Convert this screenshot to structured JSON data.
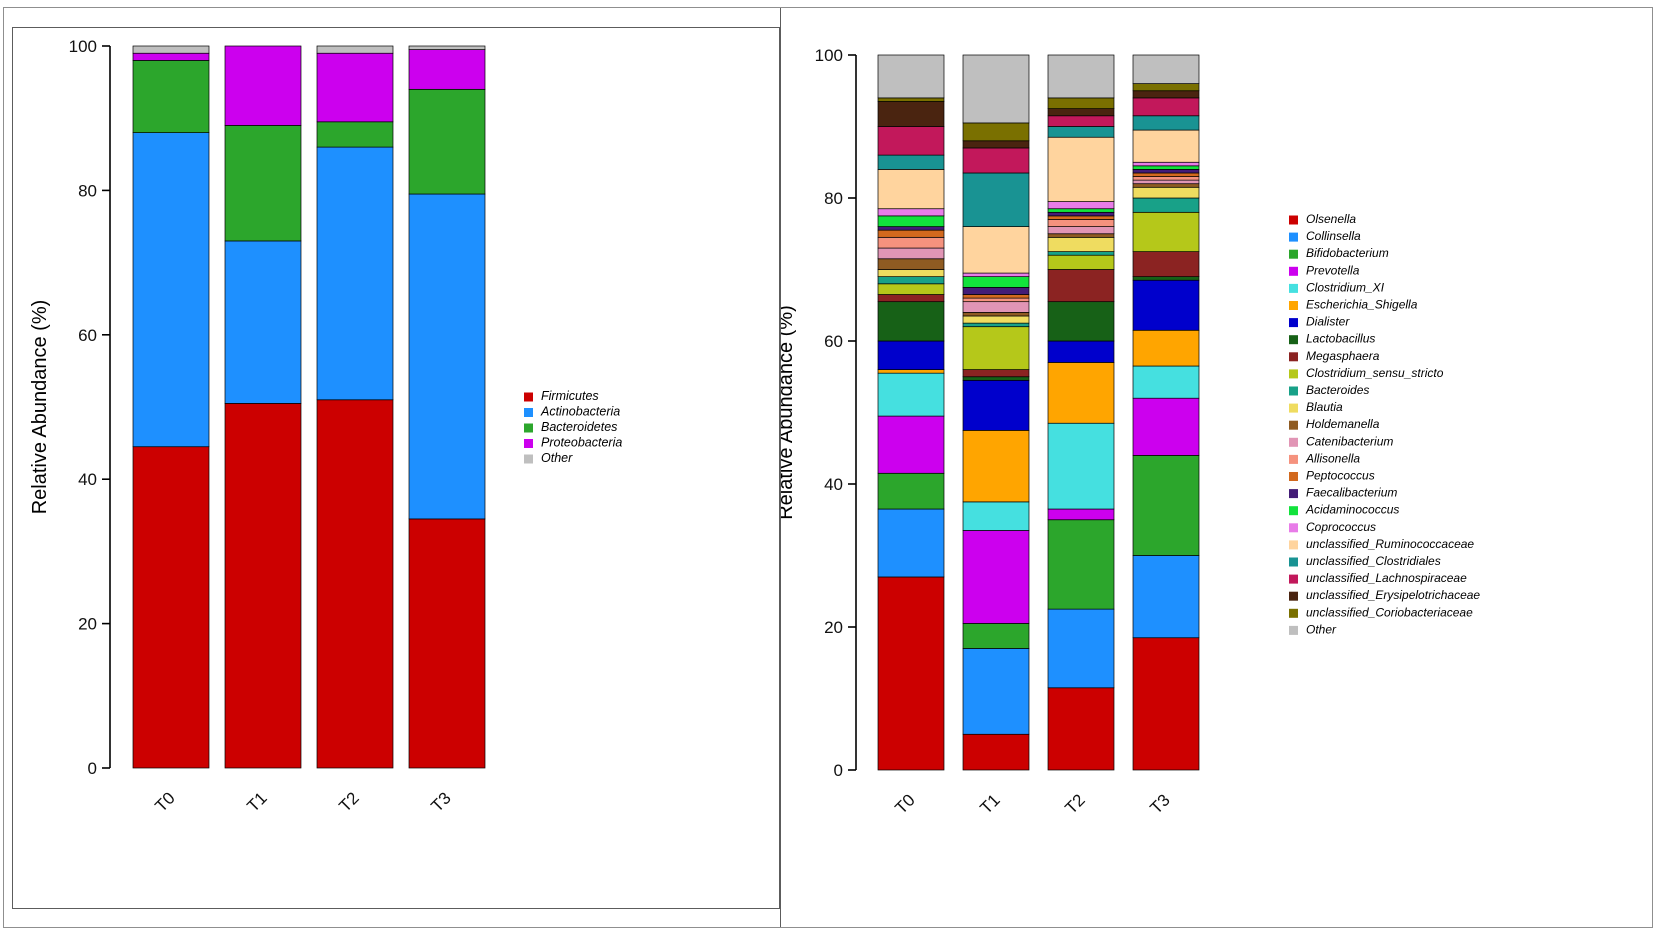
{
  "chart_data": [
    {
      "id": "phylum",
      "type": "bar",
      "stacked": true,
      "title": "",
      "xlabel": "",
      "ylabel": "Relative Abundance (%)",
      "ylim": [
        0,
        100
      ],
      "yticks": [
        0,
        20,
        40,
        60,
        80,
        100
      ],
      "grid": false,
      "legend_position": "right",
      "categories": [
        "T0",
        "T1",
        "T2",
        "T3"
      ],
      "series": [
        {
          "name": "Firmicutes",
          "color": "#CC0000",
          "values": [
            44.5,
            50.5,
            51.0,
            34.5
          ]
        },
        {
          "name": "Actinobacteria",
          "color": "#1E90FF",
          "values": [
            43.5,
            22.5,
            35.0,
            45.0
          ]
        },
        {
          "name": "Bacteroidetes",
          "color": "#2CA62C",
          "values": [
            10.0,
            16.0,
            3.5,
            14.5
          ]
        },
        {
          "name": "Proteobacteria",
          "color": "#CC00EE",
          "values": [
            1.0,
            11.0,
            9.5,
            5.5
          ]
        },
        {
          "name": "Other",
          "color": "#BFBFBF",
          "values": [
            1.0,
            0.0,
            1.0,
            0.5
          ]
        }
      ]
    },
    {
      "id": "genus",
      "type": "bar",
      "stacked": true,
      "title": "",
      "xlabel": "",
      "ylabel": "Relative Abundance (%)",
      "ylim": [
        0,
        100
      ],
      "yticks": [
        0,
        20,
        40,
        60,
        80,
        100
      ],
      "grid": false,
      "legend_position": "right",
      "categories": [
        "T0",
        "T1",
        "T2",
        "T3"
      ],
      "series": [
        {
          "name": "Olsenella",
          "color": "#CC0000",
          "values": [
            27.0,
            5.0,
            11.5,
            18.5
          ]
        },
        {
          "name": "Collinsella",
          "color": "#1E90FF",
          "values": [
            9.5,
            12.0,
            11.0,
            11.5
          ]
        },
        {
          "name": "Bifidobacterium",
          "color": "#2CA62C",
          "values": [
            5.0,
            3.5,
            12.5,
            14.0
          ]
        },
        {
          "name": "Prevotella",
          "color": "#CC00EE",
          "values": [
            8.0,
            13.0,
            1.5,
            8.0
          ]
        },
        {
          "name": "Clostridium_XI",
          "color": "#45E0E0",
          "values": [
            6.0,
            4.0,
            12.0,
            4.5
          ]
        },
        {
          "name": "Escherichia_Shigella",
          "color": "#FFA500",
          "values": [
            0.5,
            10.0,
            8.5,
            5.0
          ]
        },
        {
          "name": "Dialister",
          "color": "#0000CC",
          "values": [
            4.0,
            7.0,
            3.0,
            7.0
          ]
        },
        {
          "name": "Lactobacillus",
          "color": "#176117",
          "values": [
            5.5,
            0.5,
            5.5,
            0.5
          ]
        },
        {
          "name": "Megasphaera",
          "color": "#8B2322",
          "values": [
            1.0,
            1.0,
            4.5,
            3.5
          ]
        },
        {
          "name": "Clostridium_sensu_stricto",
          "color": "#B5C81A",
          "values": [
            1.5,
            6.0,
            2.0,
            5.5
          ]
        },
        {
          "name": "Bacteroides",
          "color": "#18A188",
          "values": [
            1.0,
            0.5,
            0.5,
            2.0
          ]
        },
        {
          "name": "Blautia",
          "color": "#EFDC60",
          "values": [
            1.0,
            1.0,
            2.0,
            1.5
          ]
        },
        {
          "name": "Holdemanella",
          "color": "#8F5B22",
          "values": [
            1.5,
            0.5,
            0.5,
            0.5
          ]
        },
        {
          "name": "Catenibacterium",
          "color": "#E195B5",
          "values": [
            1.5,
            1.5,
            1.0,
            0.5
          ]
        },
        {
          "name": "Allisonella",
          "color": "#F5927E",
          "values": [
            1.5,
            0.5,
            1.0,
            0.5
          ]
        },
        {
          "name": "Peptococcus",
          "color": "#D2691E",
          "values": [
            1.0,
            0.5,
            0.5,
            0.5
          ]
        },
        {
          "name": "Faecalibacterium",
          "color": "#431C77",
          "values": [
            0.5,
            1.0,
            0.5,
            0.5
          ]
        },
        {
          "name": "Acidaminococcus",
          "color": "#12E23C",
          "values": [
            1.5,
            1.5,
            0.5,
            0.5
          ]
        },
        {
          "name": "Coprococcus",
          "color": "#E87CE8",
          "values": [
            1.0,
            0.5,
            1.0,
            0.5
          ]
        },
        {
          "name": "unclassified_Ruminococcaceae",
          "color": "#FFD49E",
          "values": [
            5.5,
            6.5,
            9.0,
            4.5
          ]
        },
        {
          "name": "unclassified_Clostridiales",
          "color": "#199393",
          "values": [
            2.0,
            7.5,
            1.5,
            2.0
          ]
        },
        {
          "name": "unclassified_Lachnospiraceae",
          "color": "#C2185B",
          "values": [
            4.0,
            3.5,
            1.5,
            2.5
          ]
        },
        {
          "name": "unclassified_Erysipelotrichaceae",
          "color": "#4A2410",
          "values": [
            3.5,
            1.0,
            1.0,
            1.0
          ]
        },
        {
          "name": "unclassified_Coriobacteriaceae",
          "color": "#7A7000",
          "values": [
            0.5,
            2.5,
            1.5,
            1.0
          ]
        },
        {
          "name": "Other",
          "color": "#BFBFBF",
          "values": [
            6.0,
            9.5,
            6.0,
            4.0
          ]
        }
      ]
    }
  ]
}
